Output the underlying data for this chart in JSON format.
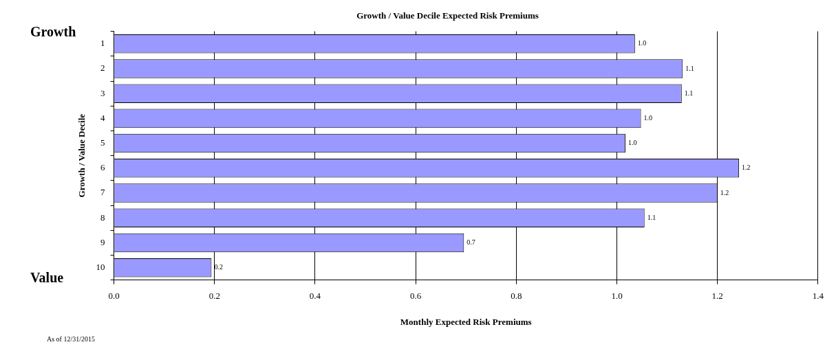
{
  "chart_data": {
    "type": "bar",
    "orientation": "horizontal",
    "title": "Growth / Value Decile Expected Risk Premiums",
    "xlabel": "Monthly Expected Risk Premiums",
    "ylabel": "Growth / Value Decile",
    "categories": [
      "1",
      "2",
      "3",
      "4",
      "5",
      "6",
      "7",
      "8",
      "9",
      "10"
    ],
    "values": [
      1.036,
      1.131,
      1.129,
      1.048,
      1.017,
      1.243,
      1.2,
      1.055,
      0.696,
      0.194
    ],
    "value_labels": [
      "1.0",
      "1.1",
      "1.1",
      "1.0",
      "1.0",
      "1.2",
      "1.2",
      "1.1",
      "0.7",
      "0.2"
    ],
    "color": "#9999ff",
    "xlim": [
      0,
      1.4
    ],
    "xticks": [
      {
        "value": 0,
        "label": "0.0"
      },
      0.2,
      0.4,
      0.6,
      0.8,
      {
        "value": 1,
        "label": "1.0"
      },
      1.2,
      1.4
    ],
    "grid": "x",
    "legend": false,
    "annotations": [
      "Growth",
      "Value",
      "As of 12/31/2015"
    ]
  }
}
